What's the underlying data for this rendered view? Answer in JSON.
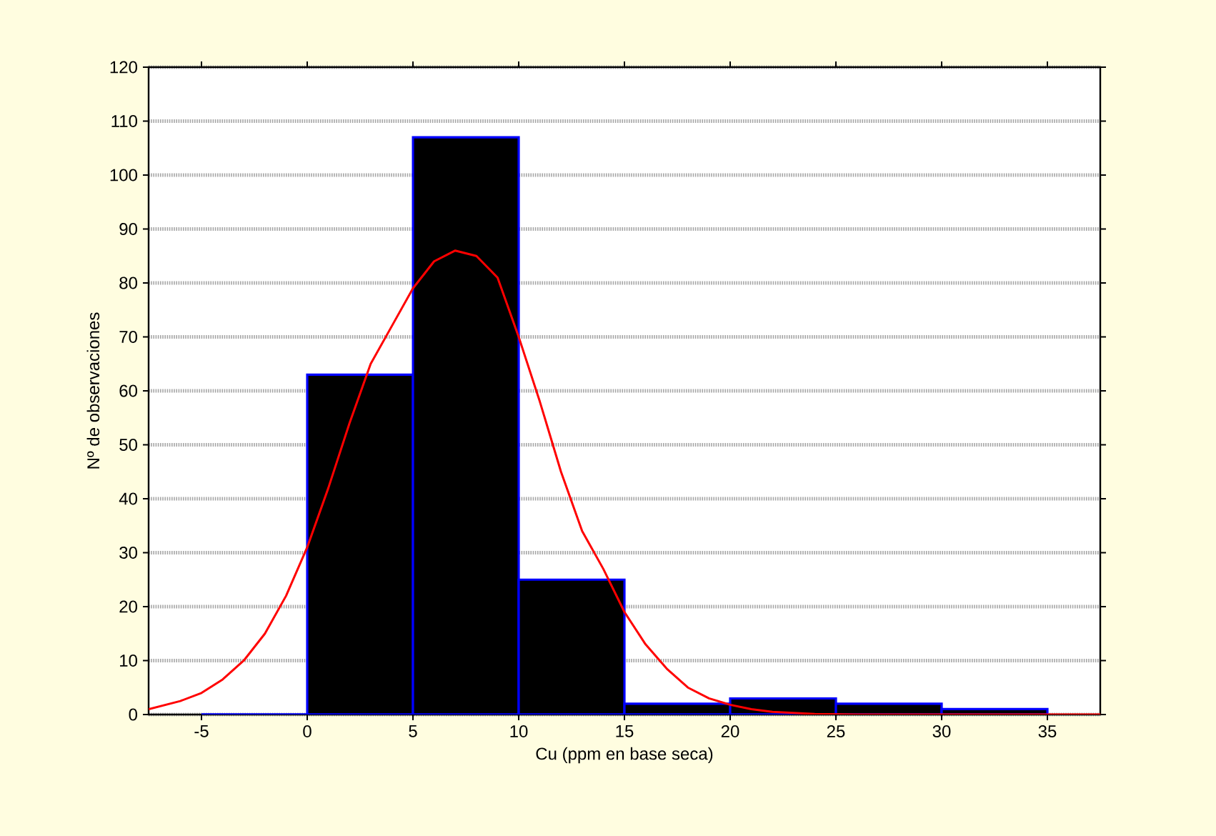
{
  "chart_data": {
    "type": "histogram",
    "xlabel": "Cu (ppm en base seca)",
    "ylabel": "Nº de observaciones",
    "bins": [
      -5,
      0,
      5,
      10,
      15,
      20,
      25,
      30,
      35
    ],
    "values": [
      0,
      63,
      107,
      25,
      2,
      3,
      2,
      1
    ],
    "color": "#000000",
    "xlim": [
      -7.5,
      37.5
    ],
    "ylim": [
      0,
      120
    ],
    "xticks": [
      -5,
      0,
      5,
      10,
      15,
      20,
      25,
      30,
      35
    ],
    "yticks": [
      0,
      10,
      20,
      30,
      40,
      50,
      60,
      70,
      80,
      90,
      100,
      110,
      120
    ],
    "grid": "y",
    "series": [
      {
        "type": "line",
        "color": "#ff0000",
        "x": [
          -7.5,
          -6,
          -5,
          -4,
          -3,
          -2,
          -1,
          0,
          1,
          2,
          3,
          4,
          5,
          6,
          7,
          8,
          9,
          10,
          11,
          12,
          13,
          14,
          15,
          16,
          17,
          18,
          19,
          20,
          21,
          22,
          24,
          26,
          30,
          37.5
        ],
        "values": [
          1,
          2.5,
          4,
          6.5,
          10,
          15,
          22,
          31,
          42,
          54,
          65,
          72,
          79,
          84,
          86,
          85,
          81,
          70,
          58,
          45,
          34,
          27,
          19,
          13,
          8.5,
          5,
          3,
          1.8,
          1,
          0.5,
          0.1,
          0,
          0,
          0
        ]
      }
    ]
  }
}
